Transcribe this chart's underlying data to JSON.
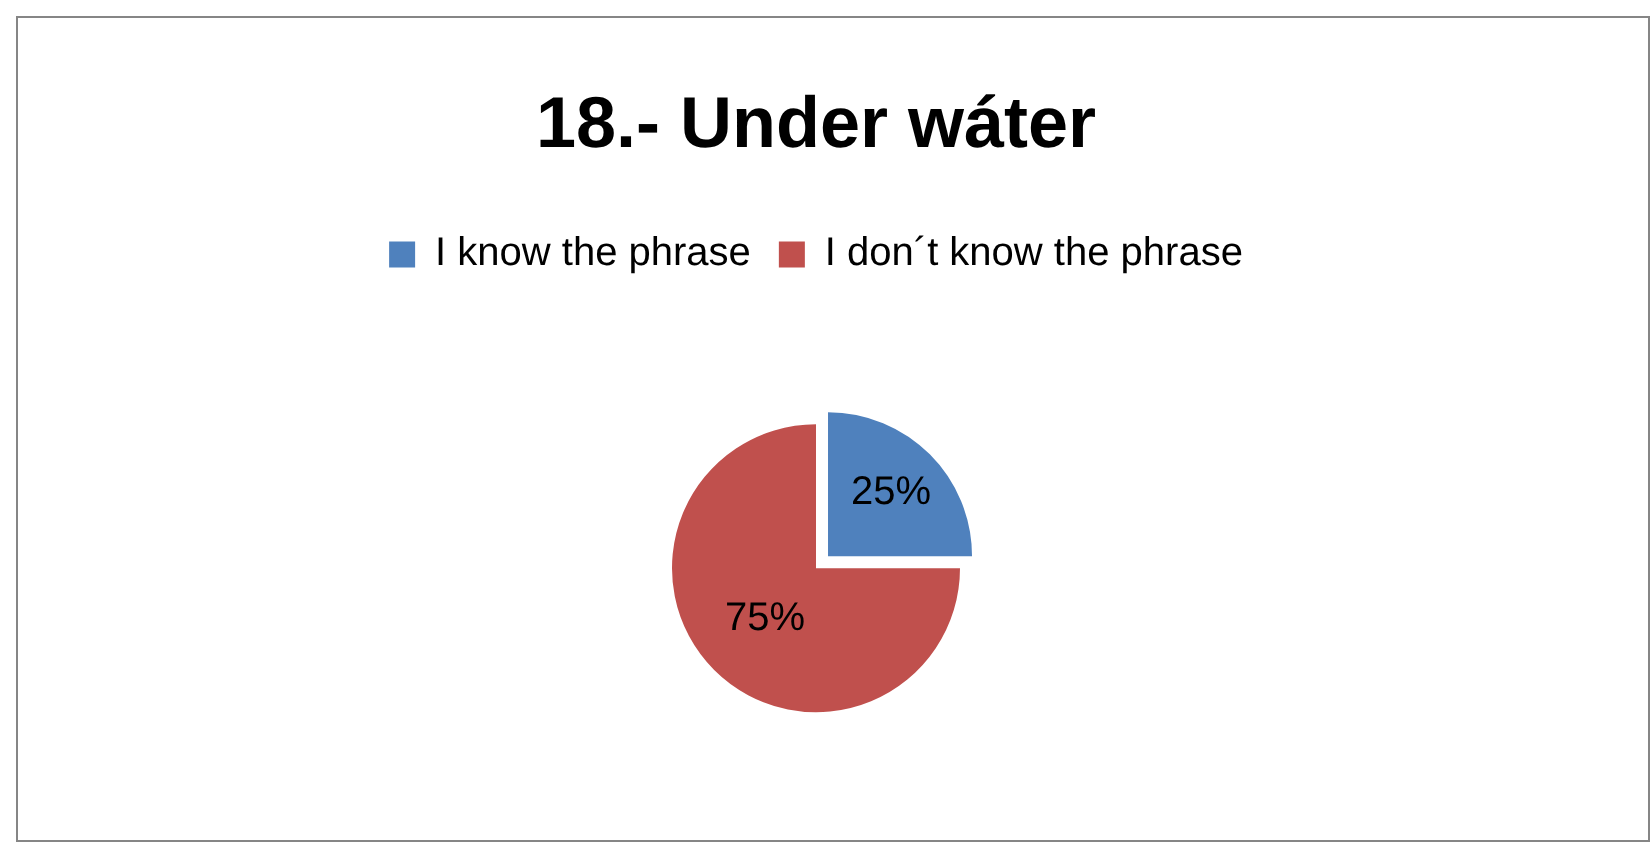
{
  "chart_data": {
    "type": "pie",
    "title": "18.- Under wáter",
    "categories": [
      "I know the phrase",
      "I don´t know the phrase"
    ],
    "values": [
      25,
      75
    ],
    "colors": [
      "#4f81bd",
      "#c0504d"
    ],
    "value_labels": [
      "25%",
      "75%"
    ],
    "legend": "top"
  }
}
